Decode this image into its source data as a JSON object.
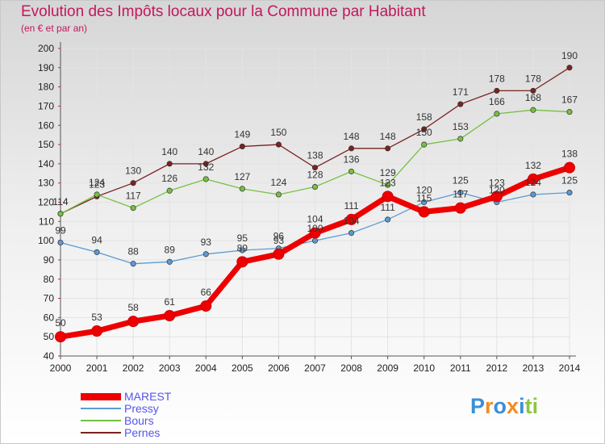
{
  "header": {
    "title": "Evolution des Impôts locaux pour la Commune par Habitant",
    "subtitle": "(en € et par an)"
  },
  "colors": {
    "title": "#c2185b",
    "legend_text": "#5555ee",
    "grid": "#e3e3e3",
    "axis_tick": "#e02020"
  },
  "chart_data": {
    "type": "line",
    "x": [
      "2000",
      "2001",
      "2002",
      "2003",
      "2004",
      "2005",
      "2006",
      "2007",
      "2008",
      "2009",
      "2010",
      "2011",
      "2012",
      "2013",
      "2014"
    ],
    "ylim": [
      40,
      200
    ],
    "yticks": [
      40,
      50,
      60,
      70,
      80,
      90,
      100,
      110,
      120,
      130,
      140,
      150,
      160,
      170,
      180,
      190,
      200
    ],
    "grid": true,
    "legend_position": "bottom-left",
    "series": [
      {
        "name": "MAREST",
        "color": "#ee0000",
        "values": [
          50,
          53,
          58,
          61,
          66,
          89,
          93,
          104,
          111,
          123,
          115,
          117,
          123,
          132,
          138
        ],
        "labels": [
          "50",
          "53",
          "58",
          "61",
          "66",
          "89",
          "93",
          "104",
          "111",
          "123",
          "115",
          "117",
          "123",
          "132",
          "138"
        ]
      },
      {
        "name": "Pressy",
        "color": "#5b9bd5",
        "values": [
          99,
          94,
          88,
          89,
          93,
          95,
          96,
          100,
          104,
          111,
          120,
          125,
          120,
          124,
          125
        ],
        "labels": [
          "99",
          "94",
          "88",
          "89",
          "93",
          "95",
          "96",
          "100",
          "104",
          "111",
          "120",
          "125",
          "120",
          "124",
          "125"
        ]
      },
      {
        "name": "Bours",
        "color": "#77c043",
        "values": [
          114,
          124,
          117,
          126,
          132,
          127,
          124,
          128,
          136,
          129,
          150,
          153,
          166,
          168,
          167
        ],
        "labels": [
          "114",
          "124",
          "117",
          "126",
          "132",
          "127",
          "124",
          "128",
          "136",
          "129",
          "150",
          "153",
          "166",
          "168",
          "167"
        ]
      },
      {
        "name": "Pernes",
        "color": "#7b2222",
        "values": [
          114,
          123,
          130,
          140,
          140,
          149,
          150,
          138,
          148,
          148,
          158,
          171,
          178,
          178,
          190
        ],
        "labels": [
          "114",
          "123",
          "130",
          "140",
          "140",
          "149",
          "150",
          "138",
          "148",
          "148",
          "158",
          "171",
          "178",
          "178",
          "190"
        ]
      }
    ]
  },
  "logo": {
    "text": "Proxiti",
    "letters": [
      {
        "ch": "P",
        "color": "#3a8fd9"
      },
      {
        "ch": "r",
        "color": "#f28c1e"
      },
      {
        "ch": "o",
        "color": "#3a8fd9"
      },
      {
        "ch": "x",
        "color": "#f28c1e"
      },
      {
        "ch": "i",
        "color": "#3a8fd9"
      },
      {
        "ch": "t",
        "color": "#8dc63f"
      },
      {
        "ch": "i",
        "color": "#8dc63f"
      }
    ]
  }
}
